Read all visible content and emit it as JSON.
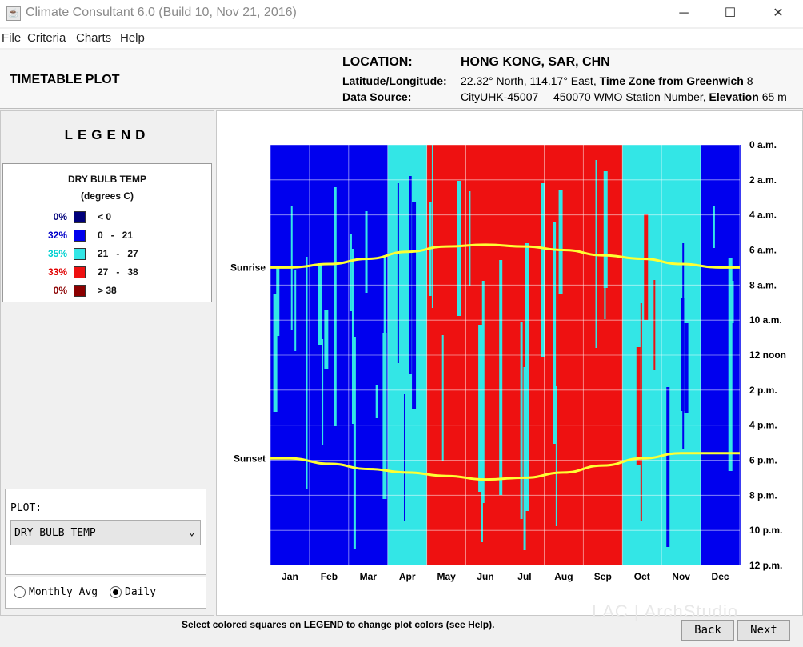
{
  "window": {
    "title": "Climate Consultant 6.0 (Build 10, Nov 21, 2016)",
    "app_icon": "java-cup-icon",
    "controls": {
      "minimize": "─",
      "maximize": "☐",
      "close": "✕"
    }
  },
  "menu": [
    "File",
    "Criteria",
    "Charts",
    "Help"
  ],
  "header": {
    "plot_title": "TIMETABLE PLOT",
    "location_label": "LOCATION:",
    "location_value": "HONG KONG, SAR, CHN",
    "latlon_label": "Latitude/Longitude:",
    "latlon_value": "22.32° North, 114.17° East,",
    "tz_label": "Time Zone from Greenwich",
    "tz_value": "8",
    "source_label": "Data Source:",
    "source_id": "CityUHK-45007",
    "wmo_value": "450070 WMO Station Number,",
    "elev_label": "Elevation",
    "elev_value": "65 m"
  },
  "legend": {
    "heading": "LEGEND",
    "title": "DRY BULB TEMP",
    "unit": "(degrees C)",
    "rows": [
      {
        "pct": "0%",
        "pct_color": "#00007a",
        "color": "#00007a",
        "range": "< 0"
      },
      {
        "pct": "32%",
        "pct_color": "#0000c8",
        "color": "#0000ee",
        "range": "0   -   21"
      },
      {
        "pct": "35%",
        "pct_color": "#00d0d0",
        "color": "#33e6e6",
        "range": "21   -   27"
      },
      {
        "pct": "33%",
        "pct_color": "#e00000",
        "color": "#ee1111",
        "range": "27   -   38"
      },
      {
        "pct": "0%",
        "pct_color": "#8b0000",
        "color": "#8b0000",
        "range": "> 38"
      }
    ]
  },
  "plot_selector": {
    "label": "PLOT:",
    "value": "DRY BULB TEMP"
  },
  "mode": {
    "options": [
      "Monthly Avg",
      "Daily"
    ],
    "selected": "Daily"
  },
  "status_text": "Select colored squares on LEGEND to change plot colors (see Help).",
  "watermark": "LAC | ArchStudio",
  "buttons": {
    "back": "Back",
    "next": "Next"
  },
  "chart_data": {
    "type": "heatmap",
    "title": "",
    "x_labels": [
      "Jan",
      "Feb",
      "Mar",
      "Apr",
      "May",
      "Jun",
      "Jul",
      "Aug",
      "Sep",
      "Oct",
      "Nov",
      "Dec"
    ],
    "y_labels": [
      "0 a.m.",
      "2 a.m.",
      "4 a.m.",
      "6 a.m.",
      "8 a.m.",
      "10 a.m.",
      "12 noon",
      "2 p.m.",
      "4 p.m.",
      "6 p.m.",
      "8 p.m.",
      "10 p.m.",
      "12 p.m."
    ],
    "y_range": [
      0,
      24
    ],
    "sunrise_label": "Sunrise",
    "sunset_label": "Sunset",
    "sunrise_hours_by_month": [
      7.0,
      6.8,
      6.5,
      6.1,
      5.8,
      5.7,
      5.8,
      6.0,
      6.3,
      6.5,
      6.8,
      7.0
    ],
    "sunset_hours_by_month": [
      17.9,
      18.2,
      18.5,
      18.7,
      18.9,
      19.1,
      19.0,
      18.7,
      18.3,
      17.9,
      17.6,
      17.6
    ],
    "sun_line_color": "#ffff33",
    "grid": true,
    "legend_position": "left panel",
    "temp_category_profile_by_month": [
      {
        "month": "Jan",
        "dominant": "0 - 21",
        "secondary": "21 - 27"
      },
      {
        "month": "Feb",
        "dominant": "0 - 21",
        "secondary": "21 - 27"
      },
      {
        "month": "Mar",
        "dominant": "0 - 21",
        "secondary": "21 - 27"
      },
      {
        "month": "Apr",
        "dominant": "21 - 27",
        "secondary": "0 - 21"
      },
      {
        "month": "May",
        "dominant": "27 - 38",
        "secondary": "21 - 27"
      },
      {
        "month": "Jun",
        "dominant": "27 - 38",
        "secondary": "21 - 27"
      },
      {
        "month": "Jul",
        "dominant": "27 - 38",
        "secondary": "21 - 27"
      },
      {
        "month": "Aug",
        "dominant": "27 - 38",
        "secondary": "21 - 27"
      },
      {
        "month": "Sep",
        "dominant": "27 - 38",
        "secondary": "21 - 27"
      },
      {
        "month": "Oct",
        "dominant": "21 - 27",
        "secondary": "27 - 38"
      },
      {
        "month": "Nov",
        "dominant": "21 - 27",
        "secondary": "0 - 21"
      },
      {
        "month": "Dec",
        "dominant": "0 - 21",
        "secondary": "21 - 27"
      }
    ]
  }
}
